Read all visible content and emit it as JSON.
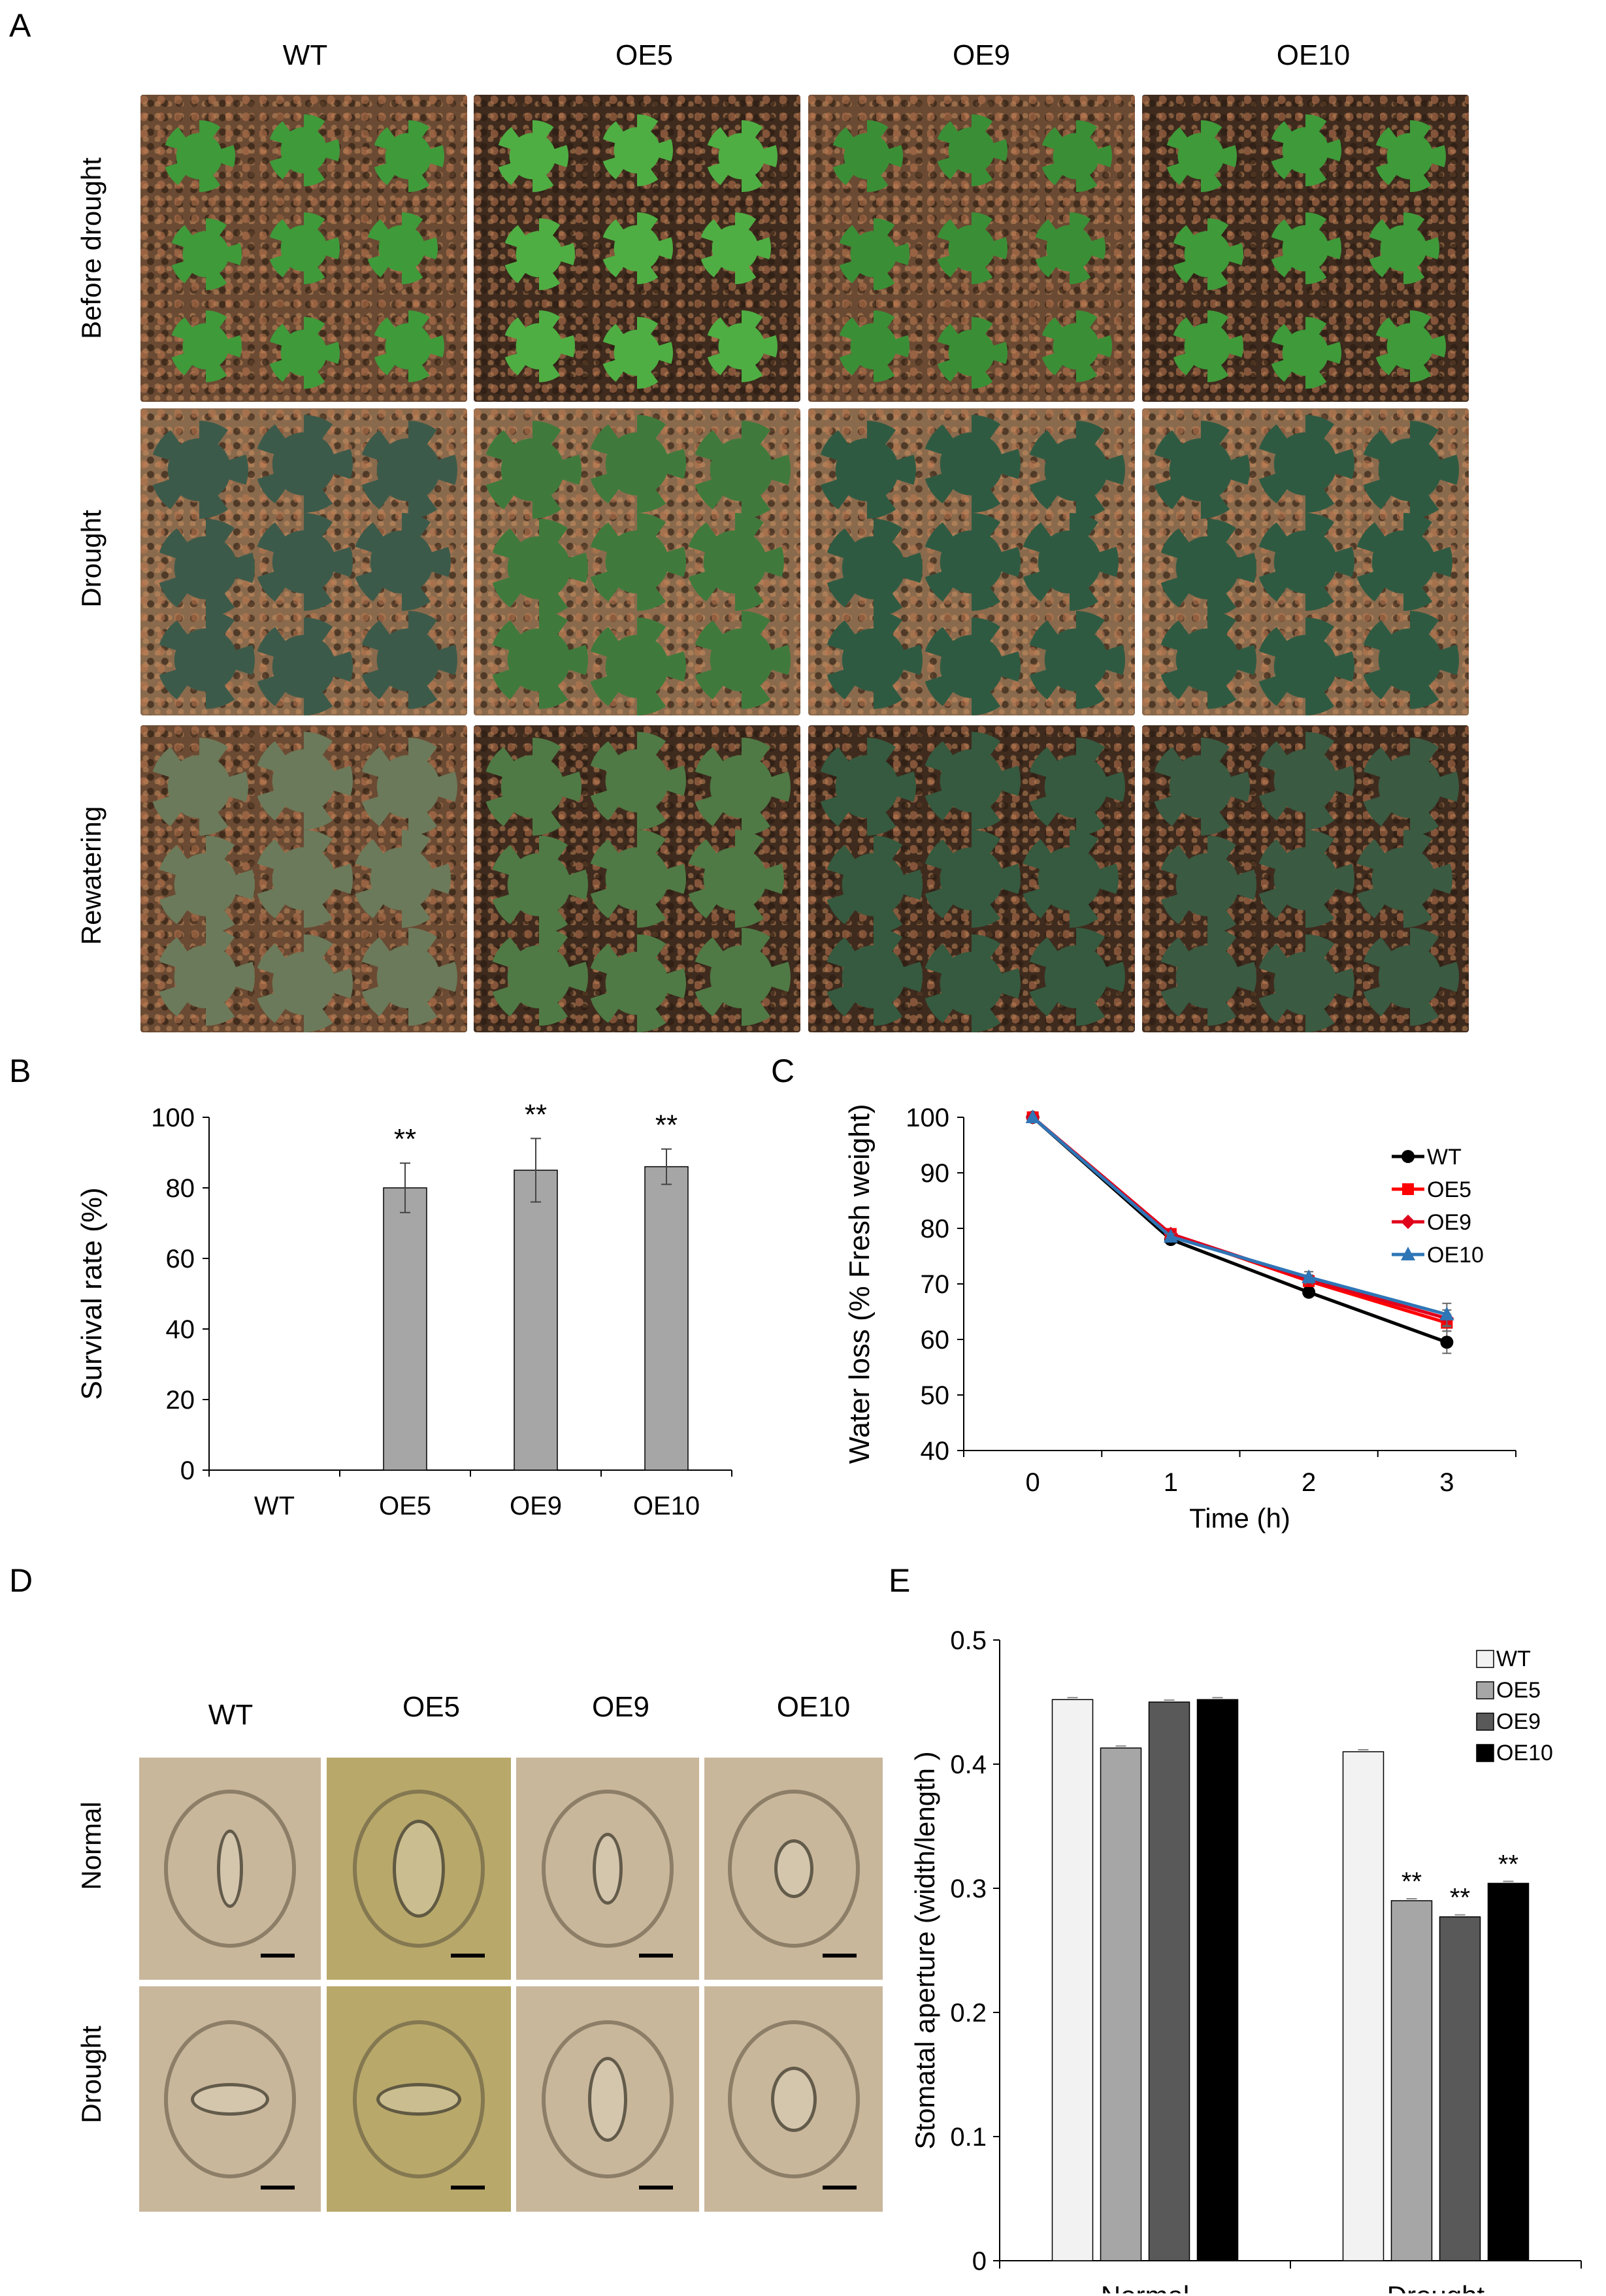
{
  "panels": {
    "a": "A",
    "b": "B",
    "c": "C",
    "d": "D",
    "e": "E"
  },
  "panel_a": {
    "columns": [
      "WT",
      "OE5",
      "OE9",
      "OE10"
    ],
    "rows": [
      "Before drought",
      "Drought",
      "Rewatering"
    ]
  },
  "panel_d": {
    "columns": [
      "WT",
      "OE5",
      "OE9",
      "OE10"
    ],
    "rows": [
      "Normal",
      "Drought"
    ]
  },
  "colors": {
    "bar_gray": "#a6a6a6",
    "WT_line": "#000000",
    "OE5_line": "#ff0000",
    "OE9_line": "#e0001b",
    "OE10_line": "#2e75b6",
    "WT_bar": "#f2f2f2",
    "OE5_bar": "#a6a6a6",
    "OE9_bar": "#595959",
    "OE10_bar": "#000000"
  },
  "chart_data": [
    {
      "type": "bar",
      "categories": [
        "WT",
        "OE5",
        "OE9",
        "OE10"
      ],
      "values": [
        0,
        80,
        85,
        86
      ],
      "errors": [
        0,
        7,
        9,
        5
      ],
      "annotations": [
        "",
        "**",
        "**",
        "**"
      ],
      "ylabel": "Survival rate (%)",
      "ylim": [
        0,
        100
      ],
      "yticks": [
        "0",
        "20",
        "40",
        "60",
        "80",
        "100"
      ]
    },
    {
      "type": "line",
      "x": [
        0,
        1,
        2,
        3
      ],
      "xticks": [
        "0",
        "1",
        "2",
        "3"
      ],
      "xlabel": "Time (h)",
      "ylabel": "Water loss (% Fresh weight)",
      "ylim": [
        40,
        100
      ],
      "yticks": [
        "40",
        "50",
        "60",
        "70",
        "80",
        "90",
        "100"
      ],
      "legend": "top-right",
      "series": [
        {
          "name": "WT",
          "values": [
            100,
            78,
            68.5,
            59.5
          ],
          "errors": [
            0,
            0.5,
            0.8,
            2
          ],
          "color": "#000000",
          "marker": "circle"
        },
        {
          "name": "OE5",
          "values": [
            100,
            79,
            70.5,
            63
          ],
          "errors": [
            0,
            0.5,
            0.8,
            1.5
          ],
          "color": "#ff0000",
          "marker": "square"
        },
        {
          "name": "OE9",
          "values": [
            100,
            79,
            70.8,
            63.8
          ],
          "errors": [
            0,
            0.5,
            0.8,
            1.5
          ],
          "color": "#e0001b",
          "marker": "diamond"
        },
        {
          "name": "OE10",
          "values": [
            100,
            78.5,
            71.2,
            64.5
          ],
          "errors": [
            0,
            0.5,
            1,
            2
          ],
          "color": "#2e75b6",
          "marker": "triangle"
        }
      ]
    },
    {
      "type": "bar",
      "categories": [
        "Normal",
        "Drought"
      ],
      "ylabel": "Stomatal aperture (width/length )",
      "ylim": [
        0,
        0.5
      ],
      "yticks": [
        "0",
        "0.1",
        "0.2",
        "0.3",
        "0.4",
        "0.5"
      ],
      "legend": "top-right",
      "series": [
        {
          "name": "WT",
          "values": [
            0.452,
            0.41
          ],
          "annotations": [
            "",
            ""
          ],
          "color": "#f2f2f2"
        },
        {
          "name": "OE5",
          "values": [
            0.413,
            0.29
          ],
          "annotations": [
            "",
            "**"
          ],
          "color": "#a6a6a6"
        },
        {
          "name": "OE9",
          "values": [
            0.45,
            0.277
          ],
          "annotations": [
            "",
            "**"
          ],
          "color": "#595959"
        },
        {
          "name": "OE10",
          "values": [
            0.452,
            0.304
          ],
          "annotations": [
            "",
            "**"
          ],
          "color": "#000000"
        }
      ]
    }
  ]
}
